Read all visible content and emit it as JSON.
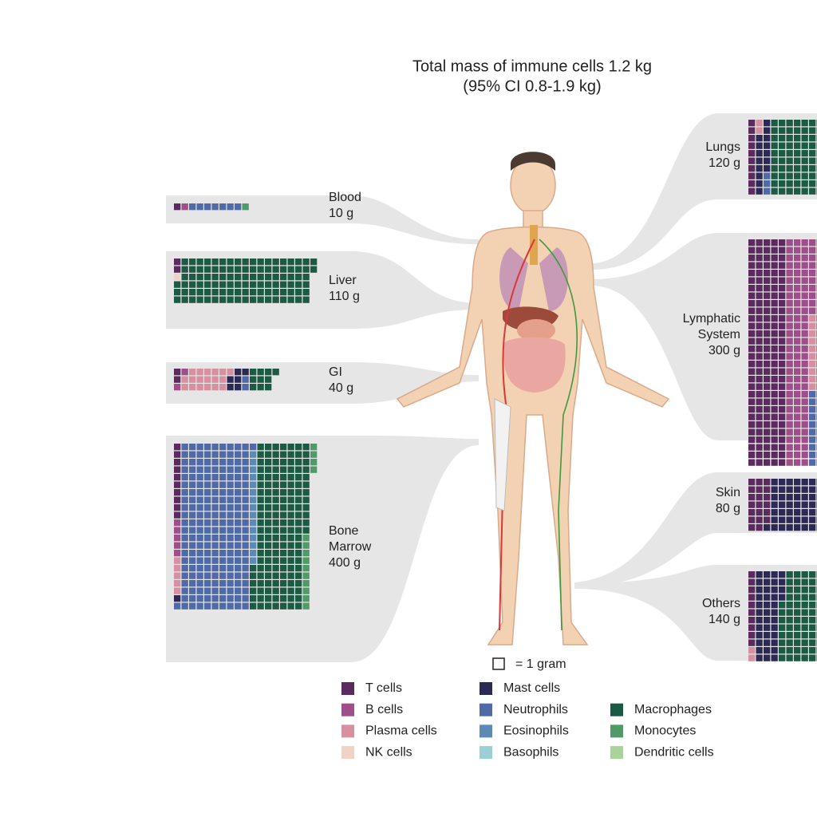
{
  "title": "Total mass of immune cells 1.2 kg",
  "subtitle": "(95% CI 0.8-1.9 kg)",
  "key_label": "= 1 gram",
  "cell_types": [
    {
      "name": "T cells",
      "color": "#5b2a5e"
    },
    {
      "name": "B cells",
      "color": "#9e4f8a"
    },
    {
      "name": "Plasma cells",
      "color": "#d6909f"
    },
    {
      "name": "NK cells",
      "color": "#f0d2c6"
    },
    {
      "name": "Mast cells",
      "color": "#2c2a55"
    },
    {
      "name": "Neutrophils",
      "color": "#4f6aa6"
    },
    {
      "name": "Eosinophils",
      "color": "#5b8ab5"
    },
    {
      "name": "Basophils",
      "color": "#9bcfd6"
    },
    {
      "name": "Macrophages",
      "color": "#1d5a44"
    },
    {
      "name": "Monocytes",
      "color": "#4f9a66"
    },
    {
      "name": "Dendritic cells",
      "color": "#a8d49a"
    }
  ],
  "organs": [
    {
      "label": [
        "Blood"
      ],
      "mass": "10 g",
      "composition": [
        1,
        1,
        0,
        0,
        0,
        7,
        0,
        0,
        0,
        1,
        0
      ]
    },
    {
      "label": [
        "Liver"
      ],
      "mass": "110 g",
      "composition": [
        2,
        0,
        0,
        1,
        0,
        0,
        0,
        0,
        107,
        0,
        0
      ]
    },
    {
      "label": [
        "GI"
      ],
      "mass": "40 g",
      "composition": [
        2,
        2,
        18,
        0,
        6,
        2,
        0,
        0,
        10,
        0,
        0
      ]
    },
    {
      "label": [
        "Bone",
        "Marrow"
      ],
      "mass": "400 g",
      "composition": [
        10,
        5,
        5,
        0,
        1,
        200,
        15,
        0,
        150,
        14,
        0
      ]
    },
    {
      "label": [
        "Lungs"
      ],
      "mass": "120 g",
      "composition": [
        10,
        0,
        2,
        0,
        15,
        3,
        0,
        0,
        85,
        5,
        0
      ]
    },
    {
      "label": [
        "Lymphatic",
        "System"
      ],
      "mass": "300 g",
      "composition": [
        150,
        100,
        10,
        0,
        0,
        20,
        0,
        0,
        20,
        0,
        0
      ]
    },
    {
      "label": [
        "Skin"
      ],
      "mass": "80 g",
      "composition": [
        20,
        0,
        0,
        0,
        50,
        0,
        0,
        0,
        10,
        0,
        0
      ]
    },
    {
      "label": [
        "Others"
      ],
      "mass": "140 g",
      "composition": [
        10,
        0,
        2,
        0,
        40,
        0,
        0,
        0,
        80,
        8,
        0
      ]
    }
  ]
}
